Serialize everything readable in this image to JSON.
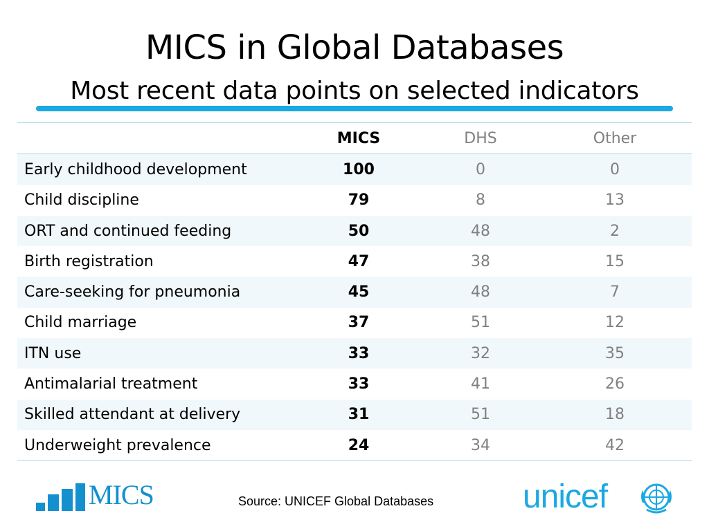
{
  "title": "MICS in Global Databases",
  "subtitle": "Most recent data points on selected indicators",
  "table": {
    "columns": [
      "",
      "MICS",
      "DHS",
      "Other"
    ],
    "rows": [
      {
        "label": "Early childhood development",
        "mics": "100",
        "dhs": "0",
        "other": "0"
      },
      {
        "label": "Child discipline",
        "mics": "79",
        "dhs": "8",
        "other": "13"
      },
      {
        "label": "ORT and continued feeding",
        "mics": "50",
        "dhs": "48",
        "other": "2"
      },
      {
        "label": "Birth registration",
        "mics": "47",
        "dhs": "38",
        "other": "15"
      },
      {
        "label": "Care-seeking for pneumonia",
        "mics": "45",
        "dhs": "48",
        "other": "7"
      },
      {
        "label": "Child marriage",
        "mics": "37",
        "dhs": "51",
        "other": "12"
      },
      {
        "label": "ITN use",
        "mics": "33",
        "dhs": "32",
        "other": "35"
      },
      {
        "label": "Antimalarial treatment",
        "mics": "33",
        "dhs": "41",
        "other": "26"
      },
      {
        "label": "Skilled attendant at delivery",
        "mics": "31",
        "dhs": "51",
        "other": "18"
      },
      {
        "label": "Underweight prevalence",
        "mics": "24",
        "dhs": "34",
        "other": "42"
      }
    ]
  },
  "footer": {
    "mics_logo_text": "MICS",
    "source": "Source: UNICEF Global Databases",
    "unicef_logo_text": "unicef"
  },
  "colors": {
    "accent": "#1ca8e0",
    "mics_blue": "#1590cf",
    "row_stripe": "#f0f8fb",
    "muted_text": "#808080"
  },
  "icons": {
    "mics_logo": "bar-chart-logo",
    "unicef_logo": "unicef-emblem-icon"
  }
}
